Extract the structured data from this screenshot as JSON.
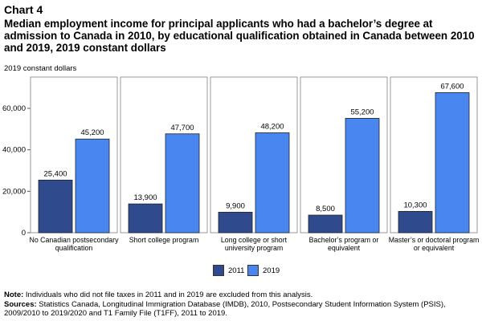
{
  "chart_number": "Chart 4",
  "title": "Median employment income for principal applicants who had a bachelor’s degree at admission to Canada in 2010, by educational qualification obtained in Canada between 2010 and 2019, 2019 constant dollars",
  "unit_label": "2019 constant dollars",
  "note_label": "Note:",
  "note_text": " Individuals who did not file taxes in 2011 and in 2019 are excluded from this analysis.",
  "sources_label": "Sources:",
  "sources_text": " Statistics Canada, Longitudinal Immigration Database (IMDB), 2010, Postsecondary Student Information System (PSIS), 2009/2010 to 2019/2020 and T1 Family File (T1FF), 2011 to 2019.",
  "colors": {
    "s2011": "#2f4b8e",
    "s2019": "#4a86f0",
    "axis": "#555555",
    "border": "#999999"
  },
  "chart_data": {
    "type": "bar",
    "categories": [
      [
        "No Canadian postsecondary",
        "qualification"
      ],
      [
        "Short college program"
      ],
      [
        "Long college or short",
        "university program"
      ],
      [
        "Bachelor’s program or",
        "equivalent"
      ],
      [
        "Master’s or doctoral program",
        "or equivalent"
      ]
    ],
    "series": [
      {
        "name": "2011",
        "values": [
          25400,
          13900,
          9900,
          8500,
          10300
        ]
      },
      {
        "name": "2019",
        "values": [
          45200,
          47700,
          48200,
          55200,
          67600
        ]
      }
    ],
    "value_labels": [
      [
        "25,400",
        "13,900",
        "9,900",
        "8,500",
        "10,300"
      ],
      [
        "45,200",
        "47,700",
        "48,200",
        "55,200",
        "67,600"
      ]
    ],
    "yticks": [
      0,
      20000,
      40000,
      60000
    ],
    "ytick_labels": [
      "0",
      "20,000",
      "40,000",
      "60,000"
    ],
    "ylim": [
      0,
      72000
    ],
    "legend_position": "bottom-center"
  }
}
